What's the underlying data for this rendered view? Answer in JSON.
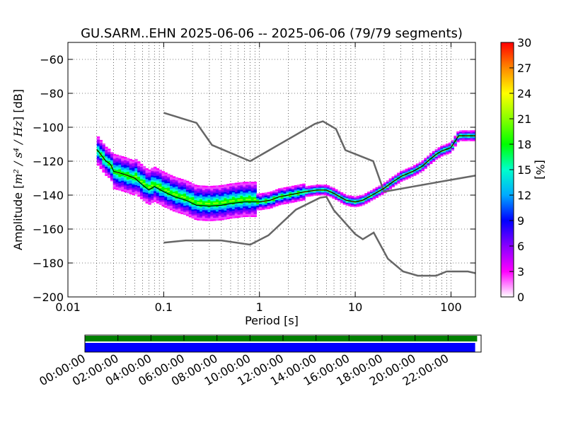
{
  "chart_data": {
    "type": "line",
    "title": "GU.SARM..EHN   2025-06-06 -- 2025-06-06  (79/79 segments)",
    "xlabel": "Period [s]",
    "ylabel_main": "Amplitude [",
    "ylabel_units": "m² / s⁴ / Hz",
    "ylabel_tail": "] [dB]",
    "xscale": "log",
    "xlim": [
      0.01,
      180
    ],
    "ylim": [
      -200,
      -50
    ],
    "grid": true,
    "x_ticks": [
      {
        "value": 0.01,
        "label": "0.01"
      },
      {
        "value": 0.1,
        "label": "0.1"
      },
      {
        "value": 1,
        "label": "1"
      },
      {
        "value": 10,
        "label": "10"
      },
      {
        "value": 100,
        "label": "100"
      }
    ],
    "y_ticks": [
      {
        "value": -60,
        "label": "−60"
      },
      {
        "value": -80,
        "label": "−80"
      },
      {
        "value": -100,
        "label": "−100"
      },
      {
        "value": -120,
        "label": "−120"
      },
      {
        "value": -140,
        "label": "−140"
      },
      {
        "value": -160,
        "label": "−160"
      },
      {
        "value": -180,
        "label": "−180"
      },
      {
        "value": -200,
        "label": "−200"
      }
    ],
    "series": [
      {
        "role": "high-noise-model",
        "color": "#666666",
        "points": [
          [
            0.1,
            -91.5
          ],
          [
            0.22,
            -97.4
          ],
          [
            0.32,
            -110.5
          ],
          [
            0.8,
            -120
          ],
          [
            3.8,
            -98
          ],
          [
            4.6,
            -96.5
          ],
          [
            6.3,
            -101
          ],
          [
            7.9,
            -113.5
          ],
          [
            15.4,
            -120
          ],
          [
            20,
            -138
          ],
          [
            100,
            -131
          ],
          [
            180,
            -128.5
          ]
        ]
      },
      {
        "role": "low-noise-model",
        "color": "#666666",
        "points": [
          [
            0.1,
            -168
          ],
          [
            0.17,
            -166.7
          ],
          [
            0.4,
            -166.7
          ],
          [
            0.8,
            -169.2
          ],
          [
            1.24,
            -163.7
          ],
          [
            2.4,
            -148.6
          ],
          [
            4.3,
            -141.5
          ],
          [
            5,
            -141
          ],
          [
            6,
            -149
          ],
          [
            10,
            -163
          ],
          [
            12,
            -166
          ],
          [
            15.6,
            -162.1
          ],
          [
            21.9,
            -177.5
          ],
          [
            31.6,
            -185
          ],
          [
            45,
            -187.5
          ],
          [
            70,
            -187.5
          ],
          [
            90,
            -185
          ],
          [
            150,
            -185
          ],
          [
            180,
            -186
          ]
        ]
      },
      {
        "role": "mode-curve",
        "color": "#000000",
        "points": [
          [
            0.02,
            -113
          ],
          [
            0.022,
            -116
          ],
          [
            0.025,
            -120
          ],
          [
            0.028,
            -122
          ],
          [
            0.03,
            -126
          ],
          [
            0.035,
            -127
          ],
          [
            0.04,
            -128
          ],
          [
            0.05,
            -130
          ],
          [
            0.06,
            -134
          ],
          [
            0.07,
            -137
          ],
          [
            0.08,
            -135
          ],
          [
            0.1,
            -138
          ],
          [
            0.13,
            -141
          ],
          [
            0.17,
            -143
          ],
          [
            0.22,
            -146
          ],
          [
            0.3,
            -146.5
          ],
          [
            0.4,
            -146
          ],
          [
            0.5,
            -145
          ],
          [
            0.7,
            -144
          ],
          [
            1,
            -144
          ],
          [
            1.3,
            -143
          ],
          [
            1.6,
            -141
          ],
          [
            2,
            -140
          ],
          [
            3,
            -138
          ],
          [
            4,
            -137
          ],
          [
            5,
            -137
          ],
          [
            6,
            -139
          ],
          [
            8,
            -143
          ],
          [
            10,
            -144
          ],
          [
            12,
            -143
          ],
          [
            15,
            -140
          ],
          [
            20,
            -136
          ],
          [
            25,
            -132
          ],
          [
            30,
            -129
          ],
          [
            40,
            -126
          ],
          [
            50,
            -123
          ],
          [
            60,
            -119
          ],
          [
            70,
            -116
          ],
          [
            80,
            -114
          ],
          [
            100,
            -112
          ],
          [
            120,
            -105
          ],
          [
            180,
            -105
          ]
        ]
      }
    ],
    "colorbar": {
      "label": "[%]",
      "range": [
        0,
        30
      ],
      "ticks": [
        {
          "value": 0,
          "label": "0"
        },
        {
          "value": 3,
          "label": "3"
        },
        {
          "value": 6,
          "label": "6"
        },
        {
          "value": 9,
          "label": "9"
        },
        {
          "value": 12,
          "label": "12"
        },
        {
          "value": 15,
          "label": "15"
        },
        {
          "value": 18,
          "label": "18"
        },
        {
          "value": 21,
          "label": "21"
        },
        {
          "value": 24,
          "label": "24"
        },
        {
          "value": 27,
          "label": "27"
        },
        {
          "value": 30,
          "label": "30"
        }
      ],
      "stops": [
        "#ffffff",
        "#ff00ff",
        "#8800ff",
        "#0000ff",
        "#00aaff",
        "#00ffcc",
        "#00ff00",
        "#88ff00",
        "#ffff00",
        "#ff8800",
        "#ff0000"
      ]
    },
    "coverage": {
      "time_ticks": [
        "00:00:00",
        "02:00:00",
        "04:00:00",
        "06:00:00",
        "08:00:00",
        "10:00:00",
        "12:00:00",
        "14:00:00",
        "16:00:00",
        "18:00:00",
        "20:00:00",
        "22:00:00"
      ],
      "data_available_fraction": 0.99,
      "processed_fraction": 0.985,
      "data_color": "#008000",
      "processed_color": "#0000ff"
    }
  }
}
